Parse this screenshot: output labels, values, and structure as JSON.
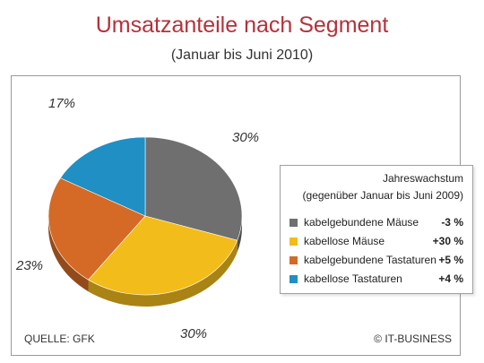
{
  "title": "Umsatzanteile nach Segment",
  "subtitle": "(Januar bis Juni 2010)",
  "source": "QUELLE: GFK",
  "copyright": "© IT-BUSINESS",
  "chart_data": {
    "type": "pie",
    "categories": [
      "kabelgebundene Mäuse",
      "kabellose Mäuse",
      "kabelgebundene Tastaturen",
      "kabellose Tastaturen"
    ],
    "values": [
      30,
      30,
      23,
      17
    ],
    "value_labels": [
      "30%",
      "30%",
      "23%",
      "17%"
    ],
    "colors": [
      "#6f6f6f",
      "#f2bc1a",
      "#d46a25",
      "#1f8fc4"
    ],
    "side_colors": [
      "#4d4d4d",
      "#a98313",
      "#934a1a",
      "#16648a"
    ],
    "title": "Umsatzanteile nach Segment",
    "subtitle": "(Januar bis Juni 2010)",
    "legend": {
      "title": "Jahreswachstum",
      "subtitle": "(gegenüber Januar bis Juni 2009)",
      "placement": "right",
      "items": [
        {
          "label": "kabelgebundene Mäuse",
          "value": "-3 %",
          "color": "#6f6f6f"
        },
        {
          "label": "kabellose Mäuse",
          "value": "+30 %",
          "color": "#f2bc1a"
        },
        {
          "label": "kabelgebundene Tastaturen",
          "value": "+5 %",
          "color": "#d46a25"
        },
        {
          "label": "kabellose Tastaturen",
          "value": "+4 %",
          "color": "#1f8fc4"
        }
      ]
    }
  }
}
